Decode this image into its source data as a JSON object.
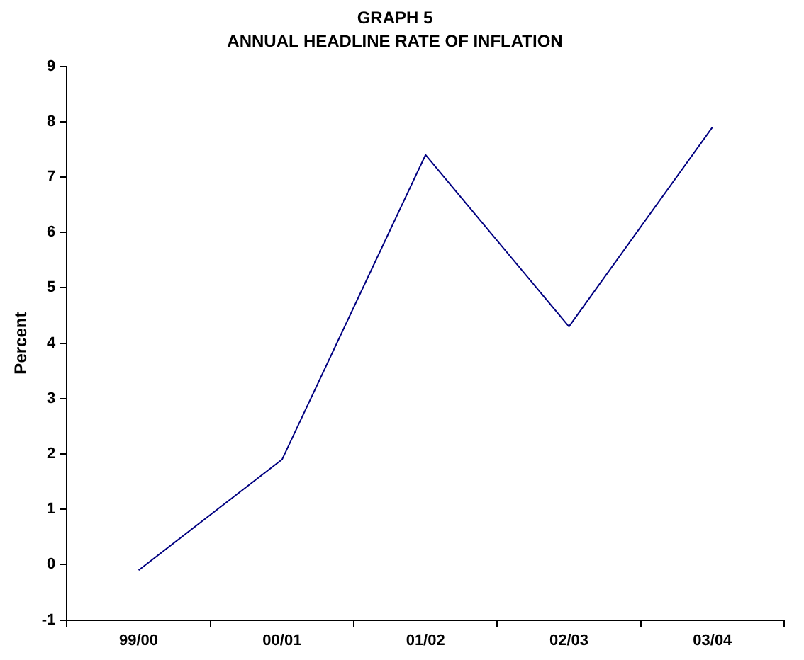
{
  "chart_data": {
    "type": "line",
    "title": "GRAPH 5",
    "subtitle": "ANNUAL HEADLINE RATE OF INFLATION",
    "ylabel": "Percent",
    "categories": [
      "99/00",
      "00/01",
      "01/02",
      "02/03",
      "03/04"
    ],
    "series": [
      {
        "color": "#000080",
        "values": [
          -0.1,
          1.9,
          7.4,
          4.3,
          7.9
        ]
      }
    ],
    "ylim": [
      -1,
      9
    ],
    "yticks": [
      -1,
      0,
      1,
      2,
      3,
      4,
      5,
      6,
      7,
      8,
      9
    ],
    "grid": false,
    "legend": false,
    "marker": "none",
    "line_style": "solid"
  }
}
